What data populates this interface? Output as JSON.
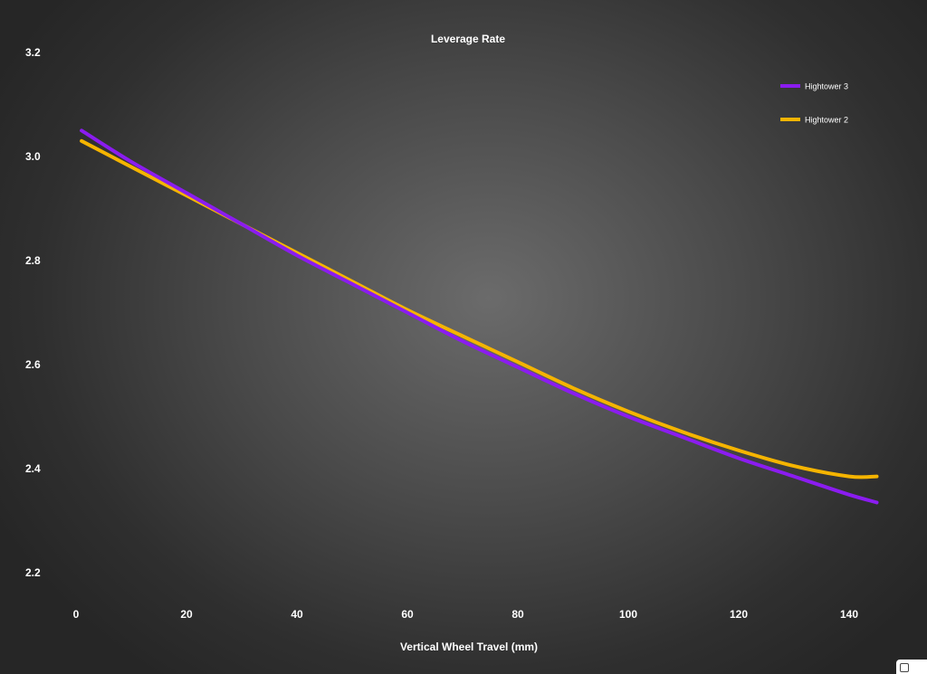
{
  "chart_data": {
    "type": "line",
    "title": "Leverage Rate",
    "xlabel": "Vertical Wheel Travel (mm)",
    "ylabel": "",
    "xlim": [
      0,
      145
    ],
    "ylim": [
      2.2,
      3.2
    ],
    "xticks": [
      0,
      20,
      40,
      60,
      80,
      100,
      120,
      140
    ],
    "yticks": [
      "2.2",
      "2.4",
      "2.6",
      "2.8",
      "3.0",
      "3.2"
    ],
    "grid": false,
    "legend": "top-right",
    "series": [
      {
        "name": "Hightower 3",
        "color": "#8b1cf0",
        "x": [
          1,
          10,
          20,
          30,
          40,
          50,
          60,
          70,
          80,
          90,
          100,
          110,
          120,
          130,
          140,
          145
        ],
        "y": [
          3.05,
          2.99,
          2.93,
          2.87,
          2.81,
          2.755,
          2.7,
          2.645,
          2.595,
          2.545,
          2.5,
          2.46,
          2.42,
          2.385,
          2.35,
          2.335
        ]
      },
      {
        "name": "Hightower 2",
        "color": "#f5b400",
        "x": [
          1,
          10,
          20,
          30,
          40,
          50,
          60,
          70,
          80,
          90,
          100,
          110,
          120,
          130,
          140,
          145
        ],
        "y": [
          3.03,
          2.98,
          2.925,
          2.87,
          2.815,
          2.76,
          2.705,
          2.655,
          2.605,
          2.555,
          2.51,
          2.47,
          2.435,
          2.405,
          2.385,
          2.385
        ]
      }
    ]
  }
}
